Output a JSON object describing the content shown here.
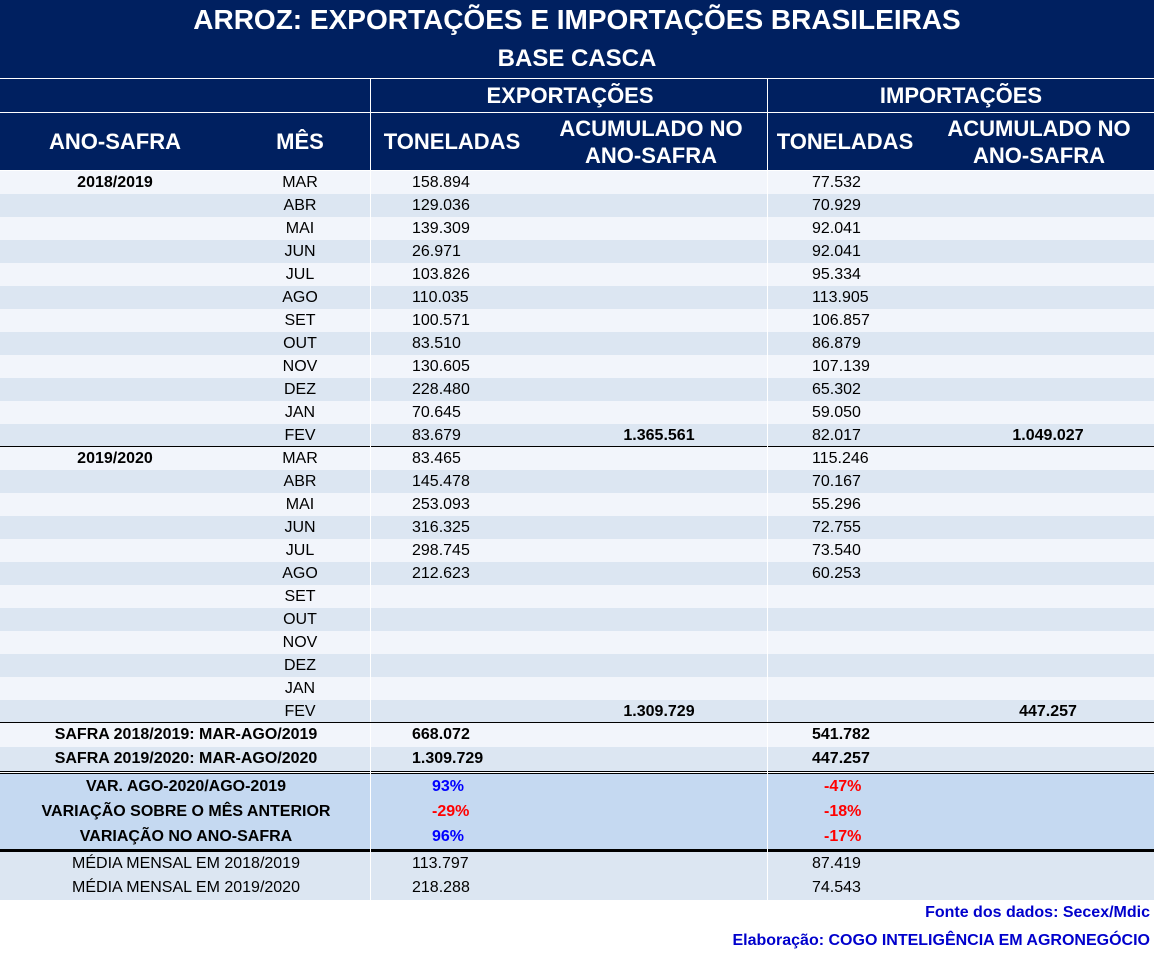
{
  "title": "ARROZ: EXPORTAÇÕES E IMPORTAÇÕES BRASILEIRAS",
  "subtitle": "BASE CASCA",
  "sections": {
    "exp": "EXPORTAÇÕES",
    "imp": "IMPORTAÇÕES"
  },
  "columns": {
    "ano": "ANO-SAFRA",
    "mes": "MÊS",
    "exp_ton": "TONELADAS",
    "exp_acum": "ACUMULADO NO ANO-SAFRA",
    "imp_ton": "TONELADAS",
    "imp_acum": "ACUMULADO NO ANO-SAFRA"
  },
  "rows": [
    {
      "ano": "2018/2019",
      "mes": "MAR",
      "exp": "158.894",
      "imp": "77.532",
      "exp_acum": "",
      "imp_acum": ""
    },
    {
      "ano": "",
      "mes": "ABR",
      "exp": "129.036",
      "imp": "70.929",
      "exp_acum": "",
      "imp_acum": ""
    },
    {
      "ano": "",
      "mes": "MAI",
      "exp": "139.309",
      "imp": "92.041",
      "exp_acum": "",
      "imp_acum": ""
    },
    {
      "ano": "",
      "mes": "JUN",
      "exp": "26.971",
      "imp": "92.041",
      "exp_acum": "",
      "imp_acum": ""
    },
    {
      "ano": "",
      "mes": "JUL",
      "exp": "103.826",
      "imp": "95.334",
      "exp_acum": "",
      "imp_acum": ""
    },
    {
      "ano": "",
      "mes": "AGO",
      "exp": "110.035",
      "imp": "113.905",
      "exp_acum": "",
      "imp_acum": ""
    },
    {
      "ano": "",
      "mes": "SET",
      "exp": "100.571",
      "imp": "106.857",
      "exp_acum": "",
      "imp_acum": ""
    },
    {
      "ano": "",
      "mes": "OUT",
      "exp": "83.510",
      "imp": "86.879",
      "exp_acum": "",
      "imp_acum": ""
    },
    {
      "ano": "",
      "mes": "NOV",
      "exp": "130.605",
      "imp": "107.139",
      "exp_acum": "",
      "imp_acum": ""
    },
    {
      "ano": "",
      "mes": "DEZ",
      "exp": "228.480",
      "imp": "65.302",
      "exp_acum": "",
      "imp_acum": ""
    },
    {
      "ano": "",
      "mes": "JAN",
      "exp": "70.645",
      "imp": "59.050",
      "exp_acum": "",
      "imp_acum": ""
    },
    {
      "ano": "",
      "mes": "FEV",
      "exp": "83.679",
      "imp": "82.017",
      "exp_acum": "1.365.561",
      "imp_acum": "1.049.027"
    },
    {
      "ano": "2019/2020",
      "mes": "MAR",
      "exp": "83.465",
      "imp": "115.246",
      "exp_acum": "",
      "imp_acum": ""
    },
    {
      "ano": "",
      "mes": "ABR",
      "exp": "145.478",
      "imp": "70.167",
      "exp_acum": "",
      "imp_acum": ""
    },
    {
      "ano": "",
      "mes": "MAI",
      "exp": "253.093",
      "imp": "55.296",
      "exp_acum": "",
      "imp_acum": ""
    },
    {
      "ano": "",
      "mes": "JUN",
      "exp": "316.325",
      "imp": "72.755",
      "exp_acum": "",
      "imp_acum": ""
    },
    {
      "ano": "",
      "mes": "JUL",
      "exp": "298.745",
      "imp": "73.540",
      "exp_acum": "",
      "imp_acum": ""
    },
    {
      "ano": "",
      "mes": "AGO",
      "exp": "212.623",
      "imp": "60.253",
      "exp_acum": "",
      "imp_acum": ""
    },
    {
      "ano": "",
      "mes": "SET",
      "exp": "",
      "imp": "",
      "exp_acum": "",
      "imp_acum": ""
    },
    {
      "ano": "",
      "mes": "OUT",
      "exp": "",
      "imp": "",
      "exp_acum": "",
      "imp_acum": ""
    },
    {
      "ano": "",
      "mes": "NOV",
      "exp": "",
      "imp": "",
      "exp_acum": "",
      "imp_acum": ""
    },
    {
      "ano": "",
      "mes": "DEZ",
      "exp": "",
      "imp": "",
      "exp_acum": "",
      "imp_acum": ""
    },
    {
      "ano": "",
      "mes": "JAN",
      "exp": "",
      "imp": "",
      "exp_acum": "",
      "imp_acum": ""
    },
    {
      "ano": "",
      "mes": "FEV",
      "exp": "",
      "imp": "",
      "exp_acum": "1.309.729",
      "imp_acum": "447.257"
    }
  ],
  "safra": [
    {
      "label": "SAFRA 2018/2019: MAR-AGO/2019",
      "exp": "668.072",
      "imp": "541.782"
    },
    {
      "label": "SAFRA 2019/2020: MAR-AGO/2020",
      "exp": "1.309.729",
      "imp": "447.257"
    }
  ],
  "variations": [
    {
      "label": "VAR. AGO-2020/AGO-2019",
      "exp": "93%",
      "imp": "-47%"
    },
    {
      "label": "VARIAÇÃO SOBRE O MÊS ANTERIOR",
      "exp": "-29%",
      "imp": "-18%"
    },
    {
      "label": "VARIAÇÃO NO ANO-SAFRA",
      "exp": "96%",
      "imp": "-17%"
    }
  ],
  "averages": [
    {
      "label": "MÉDIA MENSAL EM 2018/2019",
      "exp": "113.797",
      "imp": "87.419"
    },
    {
      "label": "MÉDIA MENSAL EM 2019/2020",
      "exp": "218.288",
      "imp": "74.543"
    }
  ],
  "footer": {
    "source": "Fonte dos dados: Secex/Mdic",
    "credit": "Elaboração: COGO INTELIGÊNCIA EM AGRONEGÓCIO"
  },
  "colors": {
    "header_bg": "#002060",
    "row_light": "#f2f5fb",
    "row_stripe": "#dce6f2",
    "variation_bg": "#c5d9f1",
    "average_bg": "#dce6f2",
    "positive": "#0000ff",
    "negative": "#ff0000",
    "footer_text": "#0000cc"
  }
}
